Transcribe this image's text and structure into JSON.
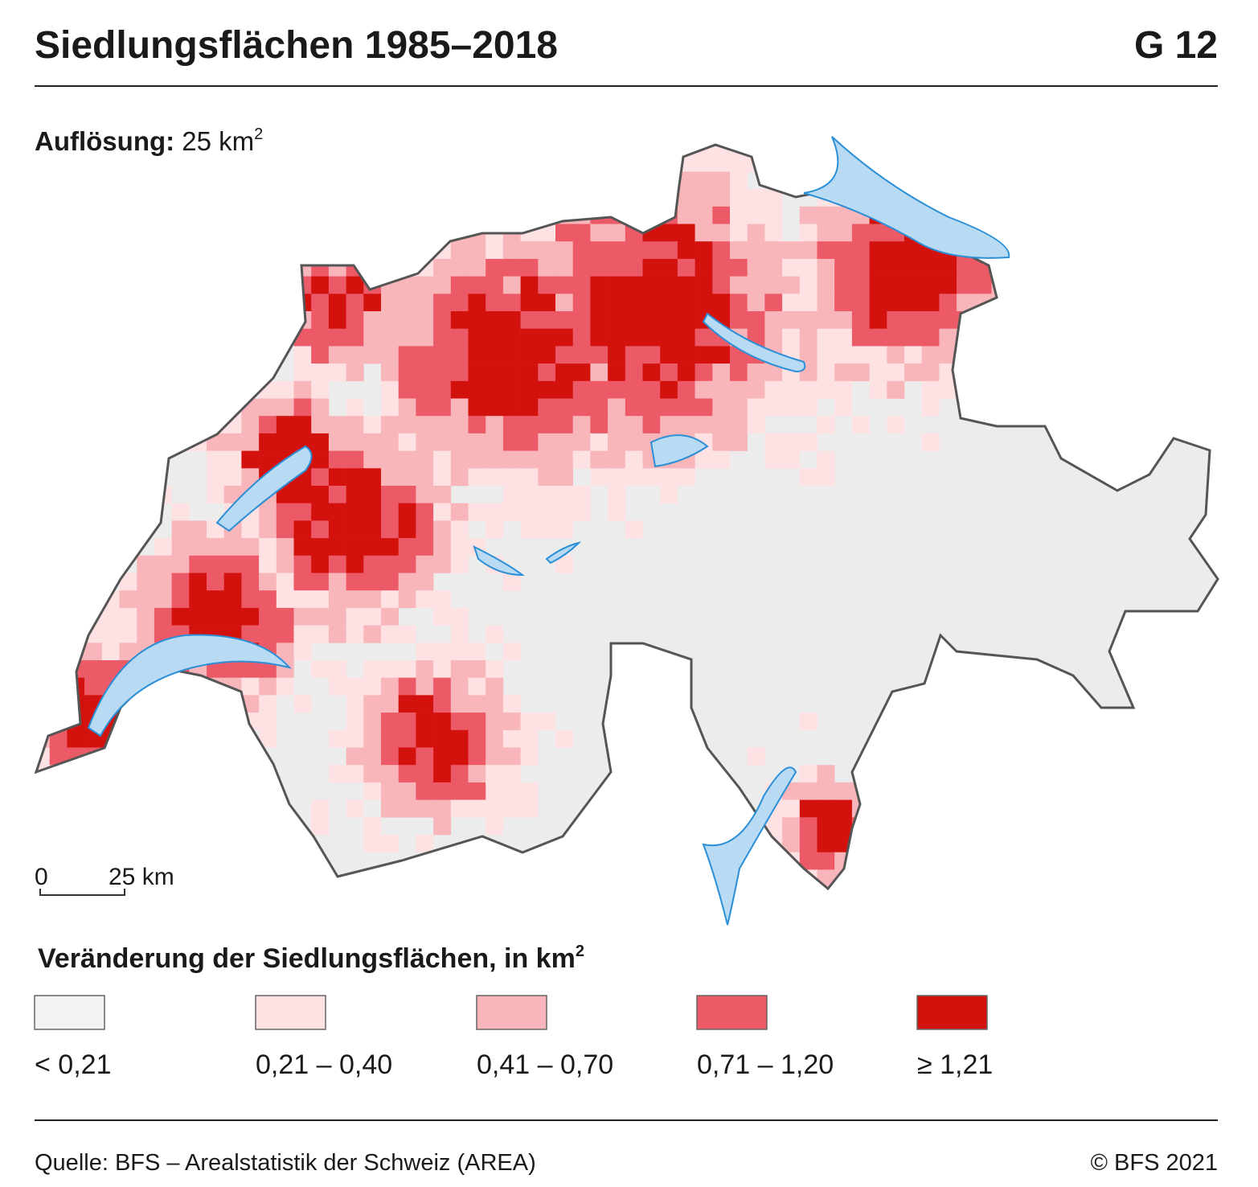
{
  "header": {
    "title": "Siedlungsflächen 1985–2018",
    "code": "G 12"
  },
  "resolution": {
    "label": "Auflösung:",
    "value": "25 km",
    "sup": "2"
  },
  "scale_bar": {
    "start": "0",
    "end": "25 km"
  },
  "legend": {
    "title": "Veränderung der Siedlungsflächen, in km",
    "title_sup": "2",
    "classes": [
      {
        "label": "< 0,21",
        "color": "#f2f2f2"
      },
      {
        "label": "0,21 – 0,40",
        "color": "#fde1e3"
      },
      {
        "label": "0,41 – 0,70",
        "color": "#f8b6ba"
      },
      {
        "label": "0,71 – 1,20",
        "color": "#ec5a67"
      },
      {
        "label": "≥ 1,21",
        "color": "#d3120e"
      }
    ]
  },
  "footer": {
    "source": "Quelle: BFS –  Arealstatistik der Schweiz (AREA)",
    "copyright": "© BFS 2021"
  }
}
